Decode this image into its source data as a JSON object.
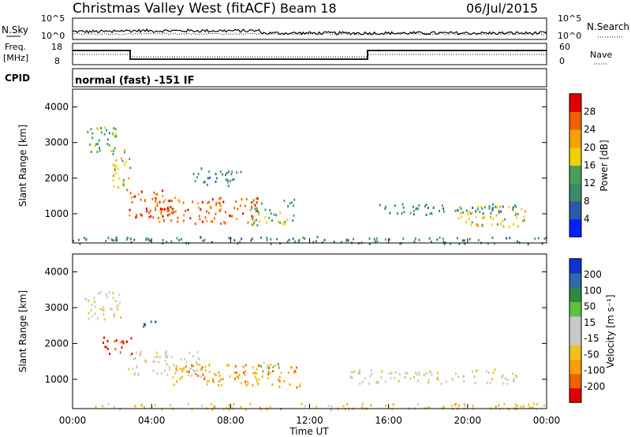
{
  "header": {
    "station": "Christmas Valley West (fitACF)",
    "beam": "Beam 18",
    "date": "06/Jul/2015"
  },
  "noise_panel": {
    "left_label": "N.Sky",
    "right_label": "N.Search",
    "ticks_left": [
      "10^5",
      "10^0"
    ],
    "ticks_right": [
      "10^5",
      "10^0"
    ]
  },
  "freq_panel": {
    "left_label_line1": "Freq.",
    "left_label_line2": "[MHz]",
    "right_label": "Nave",
    "ticks_left": [
      "18",
      "8"
    ],
    "ticks_right": [
      "60",
      "0"
    ]
  },
  "cpid": {
    "label": "CPID",
    "value": "normal (fast) -151 IF"
  },
  "x_axis": {
    "label": "Time UT",
    "ticks": [
      "00:00",
      "04:00",
      "08:00",
      "12:00",
      "16:00",
      "20:00",
      "00:00"
    ]
  },
  "colors": {
    "power": [
      "#0022ff",
      "#2c5aa8",
      "#3b8a6a",
      "#4aa05a",
      "#f0d000",
      "#f7a000",
      "#f06000",
      "#e00000"
    ],
    "velocity": [
      "#e00000",
      "#f06000",
      "#f7a000",
      "#f0c020",
      "#c8c8c8",
      "#c8c8c8",
      "#60c040",
      "#2e8a40",
      "#2c6aa8",
      "#1030d0"
    ]
  },
  "chart_data": [
    {
      "type": "heatmap",
      "panel": "power",
      "ylabel": "Slant Range [km]",
      "yticks": [
        "1000",
        "2000",
        "3000",
        "4000"
      ],
      "ylim": [
        180,
        4500
      ],
      "xlim": [
        0,
        24
      ],
      "colorbar_label": "Power [dB]",
      "colorbar_ticks": [
        "4",
        "8",
        "12",
        "16",
        "20",
        "24",
        "28"
      ],
      "scatter_regions": [
        {
          "t0": 0.5,
          "t1": 2.2,
          "r0": 2700,
          "r1": 3500,
          "level": 3
        },
        {
          "t0": 2.0,
          "t1": 3.0,
          "r0": 1700,
          "r1": 2900,
          "level": 4
        },
        {
          "t0": 2.8,
          "t1": 5.0,
          "r0": 900,
          "r1": 1700,
          "level": 6
        },
        {
          "t0": 4.0,
          "t1": 9.5,
          "r0": 750,
          "r1": 1500,
          "level": 6
        },
        {
          "t0": 9.0,
          "t1": 11.2,
          "r0": 700,
          "r1": 1450,
          "level": 3
        },
        {
          "t0": 6.0,
          "t1": 8.5,
          "r0": 1800,
          "r1": 2300,
          "level": 2
        },
        {
          "t0": 15.5,
          "t1": 22.5,
          "r0": 1000,
          "r1": 1300,
          "level": 2
        },
        {
          "t0": 19.5,
          "t1": 23.0,
          "r0": 650,
          "r1": 1250,
          "level": 4
        },
        {
          "t0": 0.0,
          "t1": 24.0,
          "r0": 180,
          "r1": 380,
          "level": 2
        }
      ]
    },
    {
      "type": "heatmap",
      "panel": "velocity",
      "ylabel": "Slant Range [km]",
      "yticks": [
        "1000",
        "2000",
        "3000",
        "4000"
      ],
      "ylim": [
        180,
        4500
      ],
      "xlim": [
        0,
        24
      ],
      "colorbar_label": "Velocity [m s⁻¹]",
      "colorbar_ticks": [
        "-200",
        "-100",
        "-50",
        "-15",
        "15",
        "50",
        "100",
        "200"
      ],
      "scatter_regions": [
        {
          "t0": 0.5,
          "t1": 2.4,
          "r0": 2700,
          "r1": 3500,
          "level": 4
        },
        {
          "t0": 1.5,
          "t1": 3.0,
          "r0": 1700,
          "r1": 2200,
          "level": 0
        },
        {
          "t0": 2.8,
          "t1": 6.5,
          "r0": 1100,
          "r1": 1800,
          "level": 4
        },
        {
          "t0": 5.0,
          "t1": 11.5,
          "r0": 800,
          "r1": 1450,
          "level": 2
        },
        {
          "t0": 9.5,
          "t1": 11.0,
          "r0": 1250,
          "r1": 1500,
          "level": 6
        },
        {
          "t0": 14.0,
          "t1": 22.5,
          "r0": 900,
          "r1": 1300,
          "level": 4
        },
        {
          "t0": 3.5,
          "t1": 4.2,
          "r0": 2400,
          "r1": 2700,
          "level": 9
        },
        {
          "t0": 0.0,
          "t1": 24.0,
          "r0": 180,
          "r1": 350,
          "level": 3
        }
      ]
    }
  ]
}
